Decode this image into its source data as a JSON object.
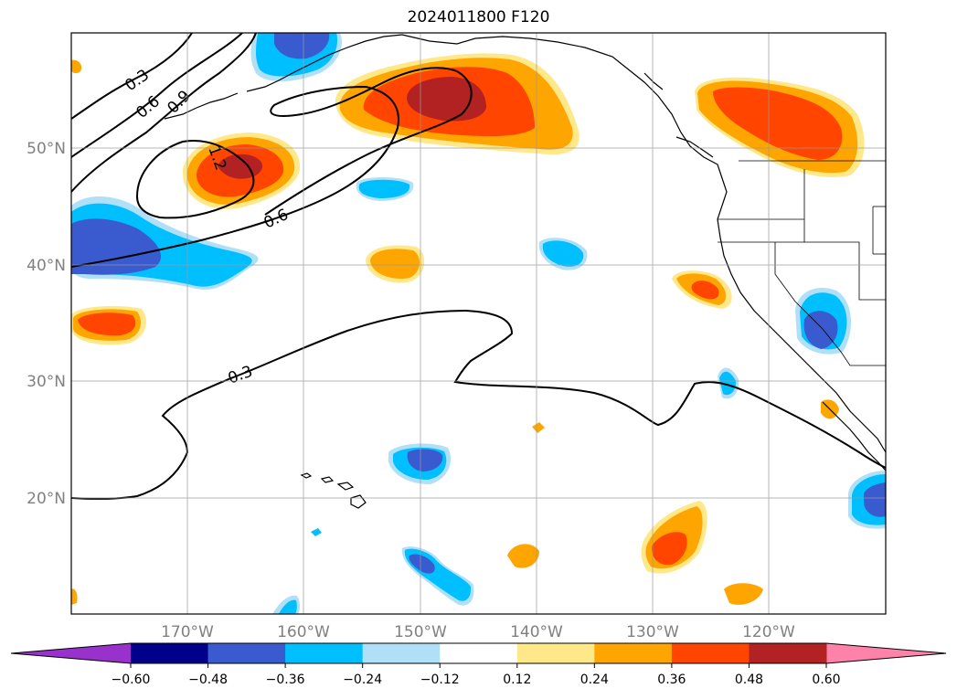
{
  "title": "2024011800 F120",
  "map": {
    "projection": "Lambert/Mercator-like regional view, North Pacific",
    "latitude_labels": [
      "50°N",
      "40°N",
      "30°N",
      "20°N"
    ],
    "longitude_labels": [
      "170°W",
      "160°W",
      "150°W",
      "140°W",
      "130°W",
      "120°W"
    ],
    "contour_labels": [
      "0.3",
      "0.6",
      "0.9",
      "1.2",
      "0.6",
      "0.3"
    ],
    "grid": true
  },
  "colorbar": {
    "ticks": [
      "−0.60",
      "−0.48",
      "−0.36",
      "−0.24",
      "−0.12",
      "0.12",
      "0.24",
      "0.36",
      "0.48",
      "0.60"
    ],
    "colors": [
      "#9932cc",
      "#00008b",
      "#3a5bd0",
      "#00bfff",
      "#b0e0f8",
      "#ffffff",
      "#ffe88a",
      "#ffa500",
      "#ff4500",
      "#b22222",
      "#ff82ab"
    ]
  }
}
